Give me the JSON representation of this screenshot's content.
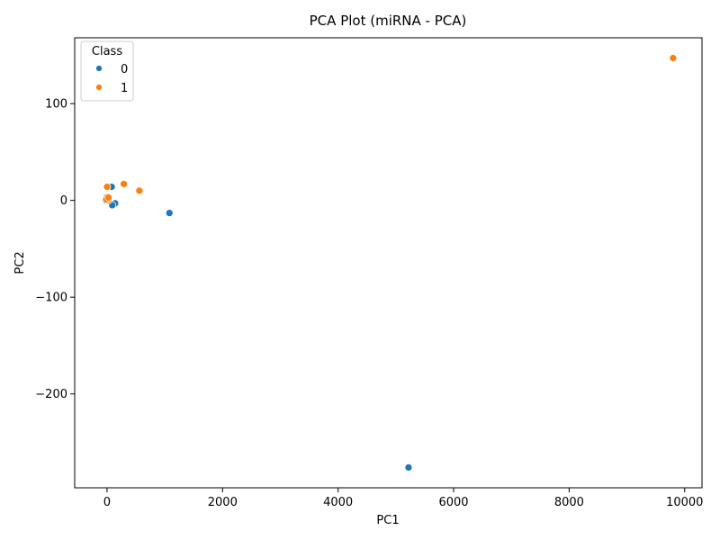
{
  "chart_data": {
    "type": "scatter",
    "title": "PCA Plot (miRNA - PCA)",
    "xlabel": "PC1",
    "ylabel": "PC2",
    "xlim": [
      -560,
      10300
    ],
    "ylim": [
      -297,
      168
    ],
    "xticks": [
      0,
      2000,
      4000,
      6000,
      8000,
      10000
    ],
    "xtick_labels": [
      "0",
      "2000",
      "4000",
      "6000",
      "8000",
      "10000"
    ],
    "yticks": [
      100,
      0,
      -100,
      -200
    ],
    "ytick_labels": [
      "100",
      "0",
      "−100",
      "−200"
    ],
    "grid": false,
    "legend": {
      "title": "Class",
      "position": "top-left",
      "entries": [
        "0",
        "1"
      ]
    },
    "series": [
      {
        "name": "0",
        "color": "#1f77b4",
        "x": [
          5220,
          1080,
          140,
          90,
          80,
          -10,
          10,
          -20,
          -5,
          30
        ],
        "y": [
          -276,
          -13,
          -3,
          -5,
          14,
          1,
          2,
          0,
          3,
          1
        ]
      },
      {
        "name": "1",
        "color": "#ff7f0e",
        "x": [
          9800,
          560,
          290,
          0,
          10,
          20,
          -15,
          25
        ],
        "y": [
          147,
          10,
          17,
          14,
          2,
          0,
          1,
          3
        ]
      }
    ]
  }
}
